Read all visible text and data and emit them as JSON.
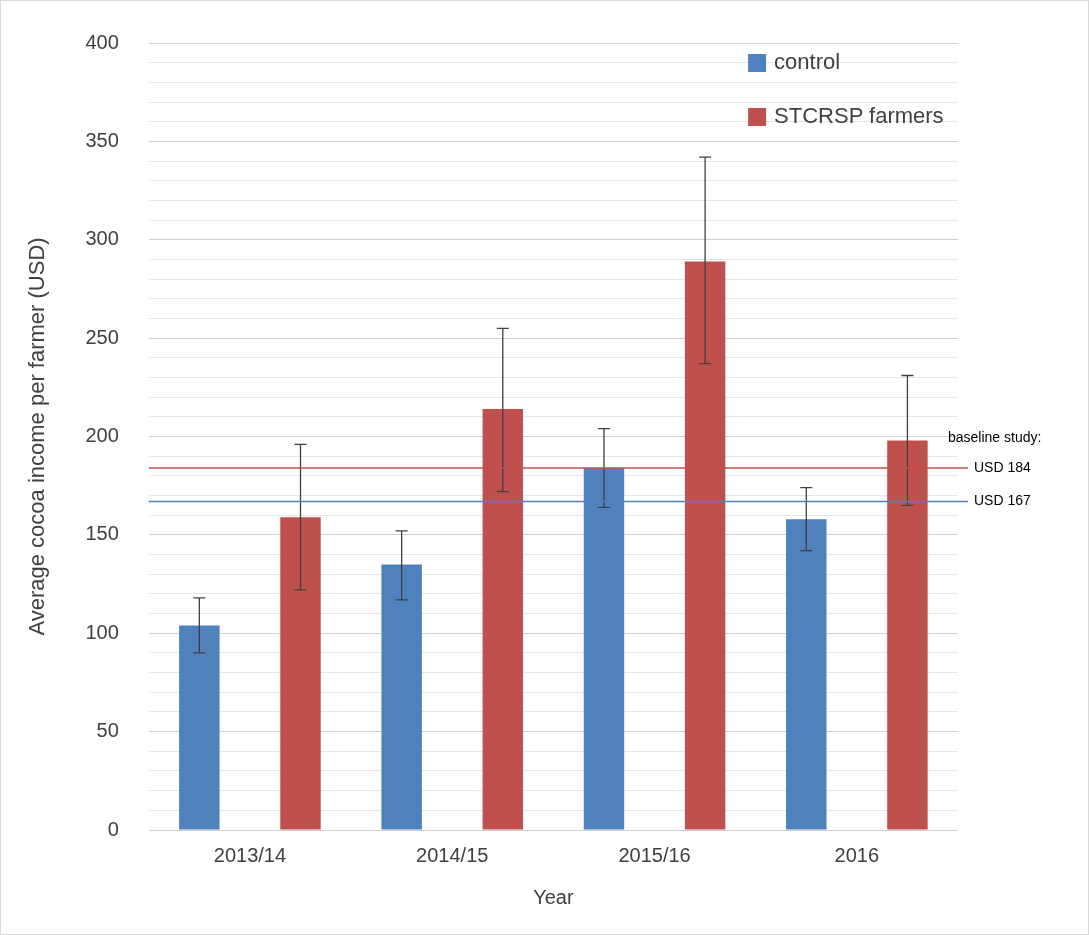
{
  "chart_data": {
    "type": "bar",
    "xlabel": "Year",
    "ylabel": "Average cocoa income per farmer (USD)",
    "categories": [
      "2013/14",
      "2014/15",
      "2015/16",
      "2016"
    ],
    "series": [
      {
        "name": "control",
        "color": "#4f81bd",
        "values": [
          104,
          135,
          184,
          158
        ],
        "errors": [
          [
            90,
            118
          ],
          [
            117,
            152
          ],
          [
            164,
            204
          ],
          [
            142,
            174
          ]
        ]
      },
      {
        "name": "STCRSP farmers",
        "color": "#c0504d",
        "values": [
          159,
          214,
          289,
          198
        ],
        "errors": [
          [
            122,
            196
          ],
          [
            172,
            255
          ],
          [
            237,
            342
          ],
          [
            165,
            231
          ]
        ]
      }
    ],
    "ylim": [
      0,
      400
    ],
    "yticks": [
      0,
      {
        "value": 10,
        "label": null
      },
      {
        "value": 20,
        "label": null
      },
      {
        "value": 30,
        "label": null
      },
      {
        "value": 40,
        "label": null
      },
      50,
      {
        "value": 60,
        "label": null
      },
      {
        "value": 70,
        "label": null
      },
      {
        "value": 80,
        "label": null
      },
      {
        "value": 90,
        "label": null
      },
      100,
      {
        "value": 110,
        "label": null
      },
      {
        "value": 120,
        "label": null
      },
      {
        "value": 130,
        "label": null
      },
      {
        "value": 140,
        "label": null
      },
      150,
      {
        "value": 160,
        "label": null
      },
      {
        "value": 170,
        "label": null
      },
      {
        "value": 180,
        "label": null
      },
      {
        "value": 190,
        "label": null
      },
      200,
      {
        "value": 210,
        "label": null
      },
      {
        "value": 220,
        "label": null
      },
      {
        "value": 230,
        "label": null
      },
      {
        "value": 240,
        "label": null
      },
      250,
      {
        "value": 260,
        "label": null
      },
      {
        "value": 270,
        "label": null
      },
      {
        "value": 280,
        "label": null
      },
      {
        "value": 290,
        "label": null
      },
      300,
      {
        "value": 310,
        "label": null
      },
      {
        "value": 320,
        "label": null
      },
      {
        "value": 330,
        "label": null
      },
      {
        "value": 340,
        "label": null
      },
      350,
      {
        "value": 360,
        "label": null
      },
      {
        "value": 370,
        "label": null
      },
      {
        "value": 380,
        "label": null
      },
      {
        "value": 390,
        "label": null
      },
      400
    ],
    "grid": "y",
    "legend": "top right",
    "ref_lines": [
      {
        "axis": "y",
        "value": 184,
        "label": "USD 184",
        "color": "#c0504d"
      },
      {
        "axis": "y",
        "value": 167,
        "label": "USD 167",
        "color": "#4f81bd"
      }
    ],
    "annotations": [
      "baseline study:"
    ]
  }
}
